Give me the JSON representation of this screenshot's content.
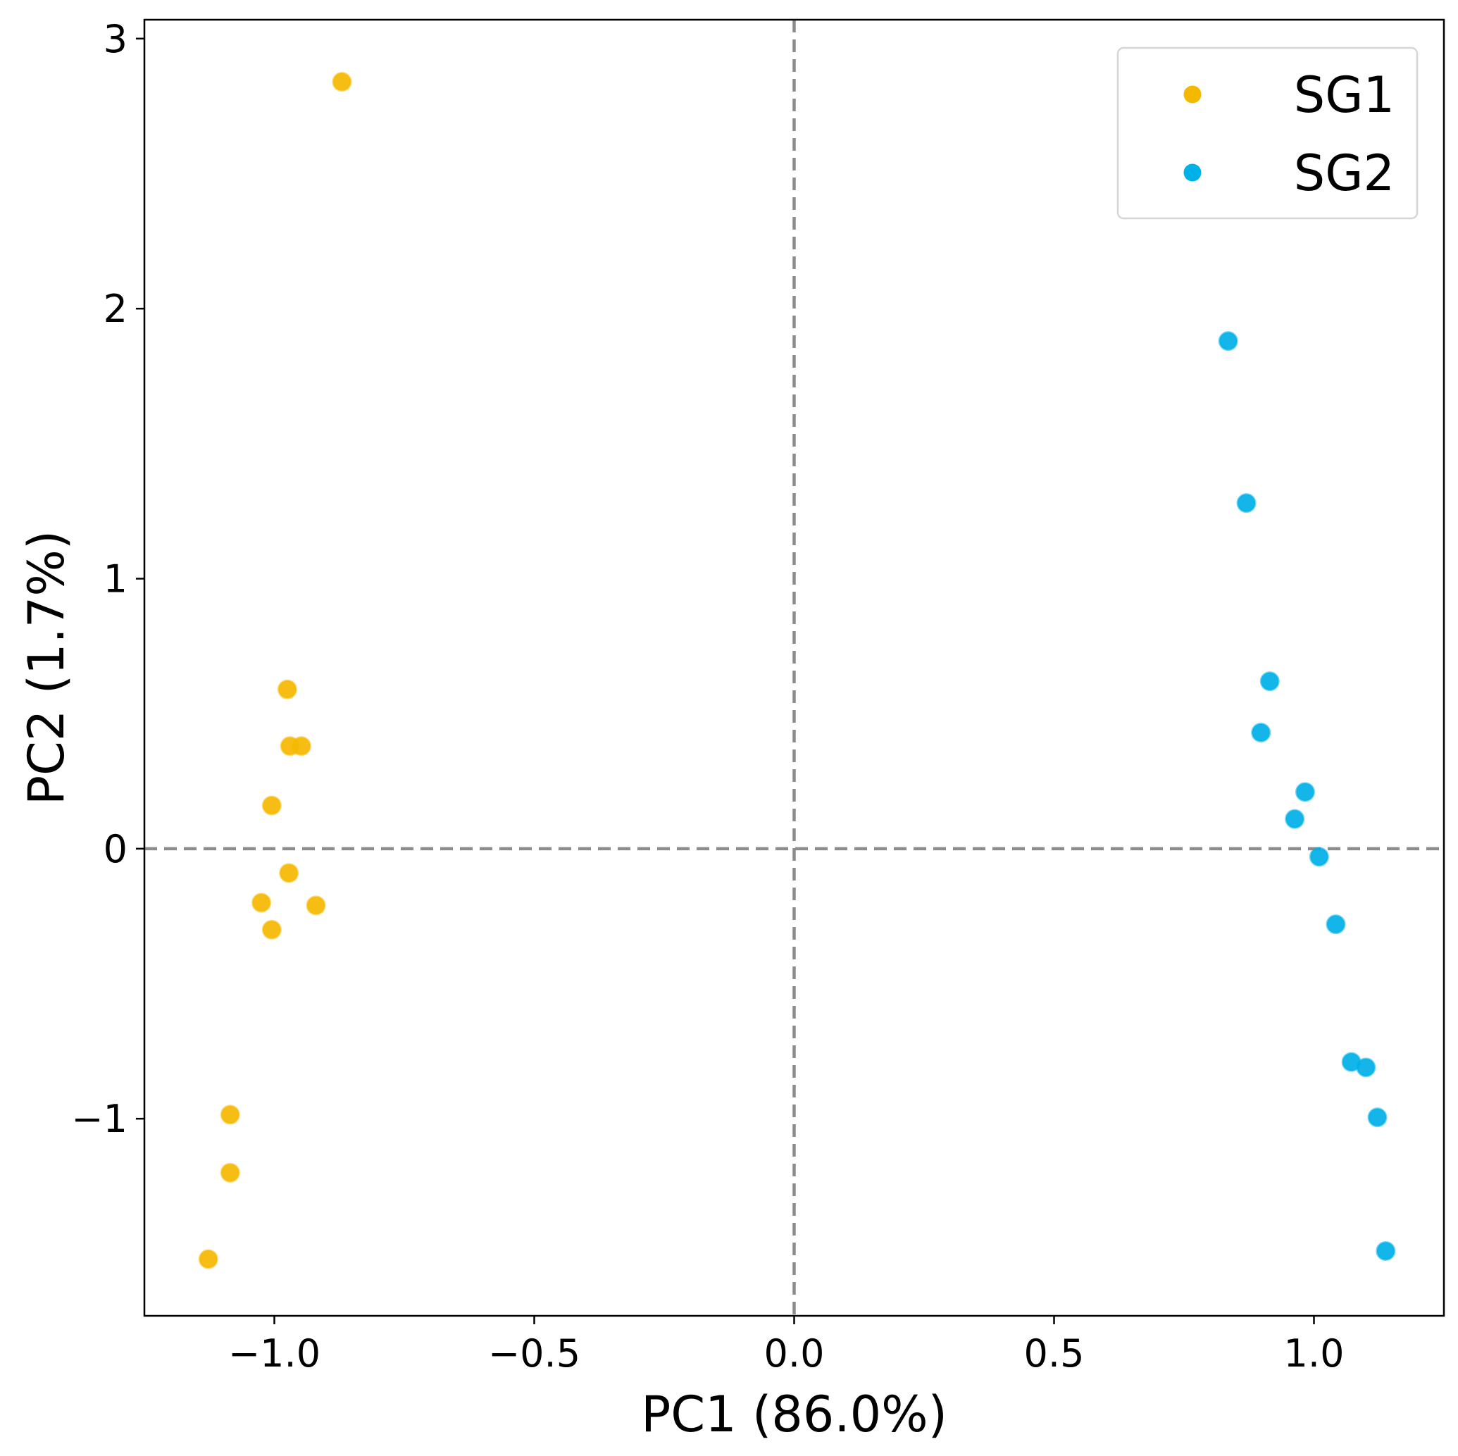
{
  "chart_data": {
    "type": "scatter",
    "title": "",
    "xlabel": "PC1 (86.0%)",
    "ylabel": "PC2 (1.7%)",
    "xlim": [
      -1.25,
      1.25
    ],
    "ylim": [
      -1.73,
      3.07
    ],
    "xticks": [
      -1.0,
      -0.5,
      0.0,
      0.5,
      1.0
    ],
    "xtick_labels": [
      "−1.0",
      "−0.5",
      "0.0",
      "0.5",
      "1.0"
    ],
    "yticks": [
      -1,
      0,
      1,
      2,
      3
    ],
    "ytick_labels": [
      "−1",
      "0",
      "1",
      "2",
      "3"
    ],
    "grid": false,
    "reference_lines": {
      "x": 0,
      "y": 0,
      "style": "dashed",
      "color": "#8c8c8c"
    },
    "legend_position": "top-right",
    "series": [
      {
        "name": "SG1",
        "color": "#f5b800",
        "points": [
          [
            -0.87,
            2.84
          ],
          [
            -0.975,
            0.59
          ],
          [
            -0.97,
            0.38
          ],
          [
            -0.948,
            0.38
          ],
          [
            -1.005,
            0.16
          ],
          [
            -0.972,
            -0.09
          ],
          [
            -1.025,
            -0.2
          ],
          [
            -0.92,
            -0.21
          ],
          [
            -1.005,
            -0.3
          ],
          [
            -1.085,
            -0.985
          ],
          [
            -1.085,
            -1.2
          ],
          [
            -1.127,
            -1.52
          ]
        ]
      },
      {
        "name": "SG2",
        "color": "#00b0e8",
        "points": [
          [
            0.835,
            1.88
          ],
          [
            0.87,
            1.28
          ],
          [
            0.915,
            0.62
          ],
          [
            0.898,
            0.43
          ],
          [
            0.983,
            0.21
          ],
          [
            0.963,
            0.11
          ],
          [
            1.01,
            -0.03
          ],
          [
            1.042,
            -0.28
          ],
          [
            1.072,
            -0.79
          ],
          [
            1.1,
            -0.81
          ],
          [
            1.122,
            -0.995
          ],
          [
            1.138,
            -1.49
          ]
        ]
      }
    ]
  }
}
